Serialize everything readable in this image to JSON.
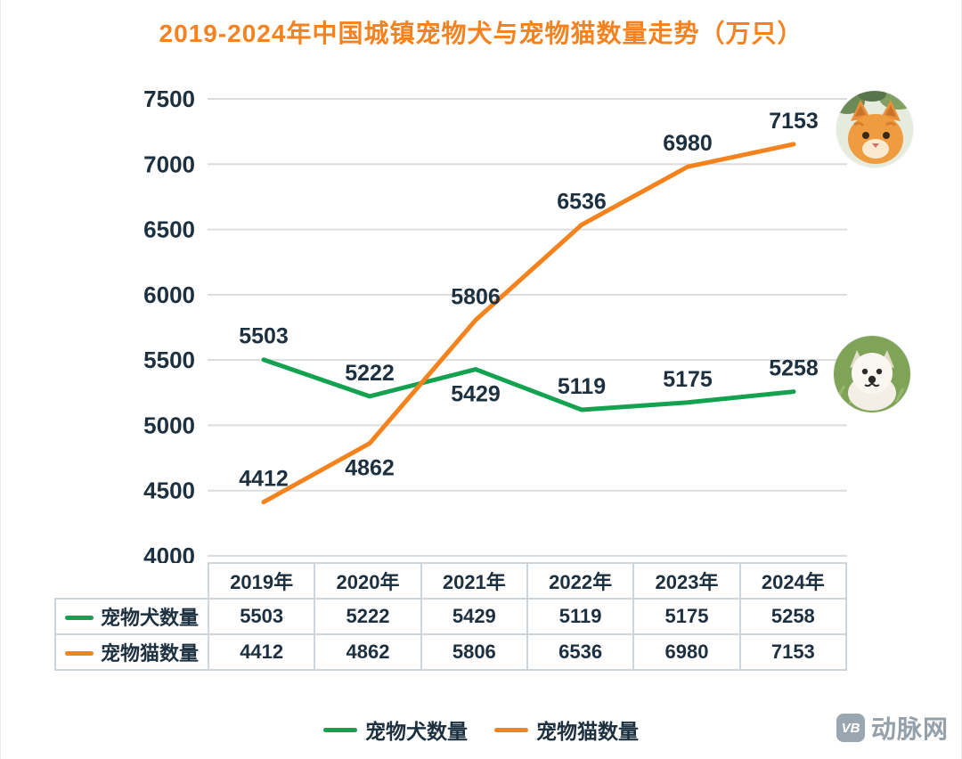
{
  "chart_data": {
    "type": "line",
    "title": "2019-2024年中国城镇宠物犬与宠物猫数量走势（万只）",
    "title_color": "#f5821f",
    "unit": "万只",
    "categories": [
      "2019年",
      "2020年",
      "2021年",
      "2022年",
      "2023年",
      "2024年"
    ],
    "series": [
      {
        "name": "宠物犬数量",
        "color": "#13a250",
        "values": [
          5503,
          5222,
          5429,
          5119,
          5175,
          5258
        ],
        "label_dy": [
          -18,
          -18,
          36,
          -18,
          -18,
          -18
        ]
      },
      {
        "name": "宠物猫数量",
        "color": "#f5831d",
        "values": [
          4412,
          4862,
          5806,
          6536,
          6980,
          7153
        ],
        "label_dy": [
          -18,
          36,
          -18,
          -18,
          -18,
          -18
        ]
      }
    ],
    "ylim": [
      4000,
      7500
    ],
    "yticks": [
      7500,
      7000,
      6500,
      6000,
      5500,
      5000,
      4500,
      4000
    ],
    "grid": true,
    "grid_color": "#d9dde0",
    "text_color": "#1d3040",
    "legend_position": "bottom"
  },
  "photos": [
    {
      "name": "cat-photo"
    },
    {
      "name": "dog-photo"
    }
  ],
  "watermark": {
    "logo_text": "VB",
    "brand_text": "动脉网"
  }
}
